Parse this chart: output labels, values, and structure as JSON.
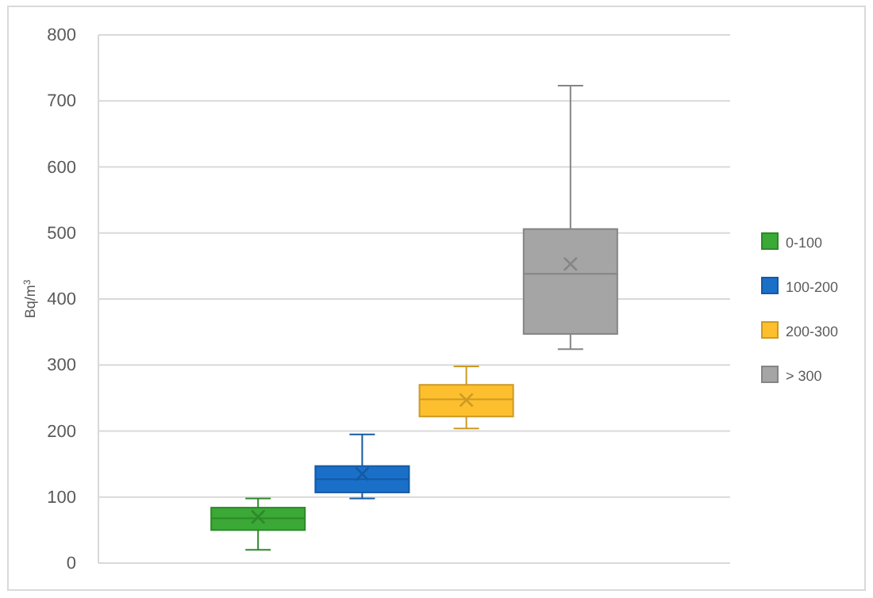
{
  "chart_data": {
    "type": "box",
    "ylabel": "Bq/m$^{3}$",
    "categories": [
      null
    ],
    "ylim": [
      0,
      800
    ],
    "yticks": [
      0,
      100,
      200,
      300,
      400,
      500,
      600,
      700,
      800
    ],
    "grid": "y",
    "legend": "right",
    "series": [
      {
        "name": "0-100",
        "color": "#3aa935",
        "boxes": [
          {
            "low": 20,
            "q1": 50,
            "median": 68,
            "q3": 84,
            "high": 98,
            "mean": 70
          }
        ]
      },
      {
        "name": "100-200",
        "color": "#1a6fc9",
        "boxes": [
          {
            "low": 98,
            "q1": 107,
            "median": 127,
            "q3": 147,
            "high": 195,
            "mean": 135
          }
        ]
      },
      {
        "name": "200-300",
        "color": "#fdbf2d",
        "boxes": [
          {
            "low": 204,
            "q1": 222,
            "median": 248,
            "q3": 270,
            "high": 298,
            "mean": 247
          }
        ]
      },
      {
        "name": "> 300",
        "color": "#a5a5a5",
        "boxes": [
          {
            "low": 324,
            "q1": 347,
            "median": 438,
            "q3": 506,
            "high": 723,
            "mean": 453
          }
        ]
      }
    ]
  }
}
